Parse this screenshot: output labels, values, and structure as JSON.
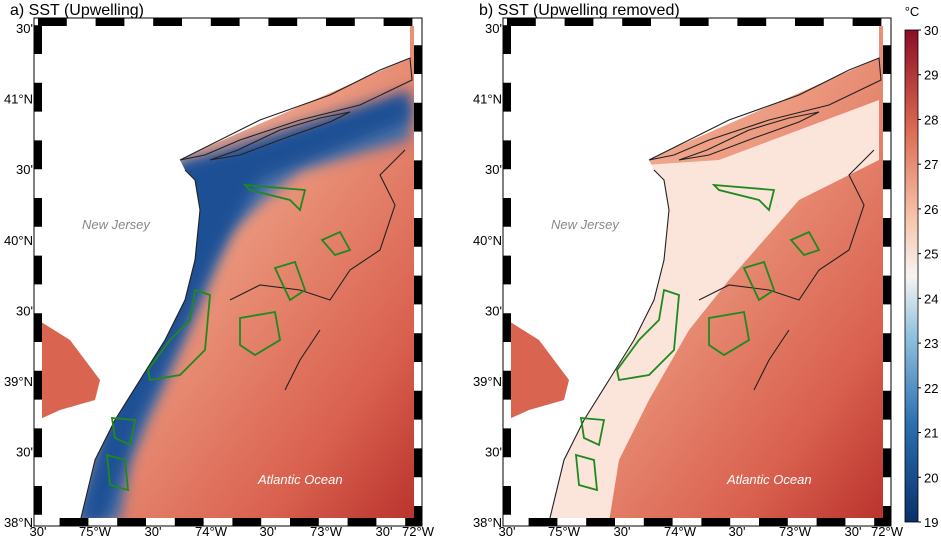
{
  "panels": [
    {
      "title": "a) SST (Upwelling)"
    },
    {
      "title": "b) SST (Upwelling removed)"
    }
  ],
  "lat_labels": [
    "30'",
    "41°N",
    "30'",
    "40°N",
    "30'",
    "39°N",
    "30'",
    "38°N"
  ],
  "lon_labels": [
    "30'",
    "75°W",
    "30'",
    "74°W",
    "30'",
    "73°W",
    "30'",
    "72°W"
  ],
  "place_labels": {
    "land": "New Jersey",
    "ocean": "Atlantic Ocean"
  },
  "colorbar": {
    "unit": "°C",
    "ticks": [
      19,
      20,
      21,
      22,
      23,
      24,
      25,
      26,
      27,
      28,
      29,
      30
    ]
  }
}
